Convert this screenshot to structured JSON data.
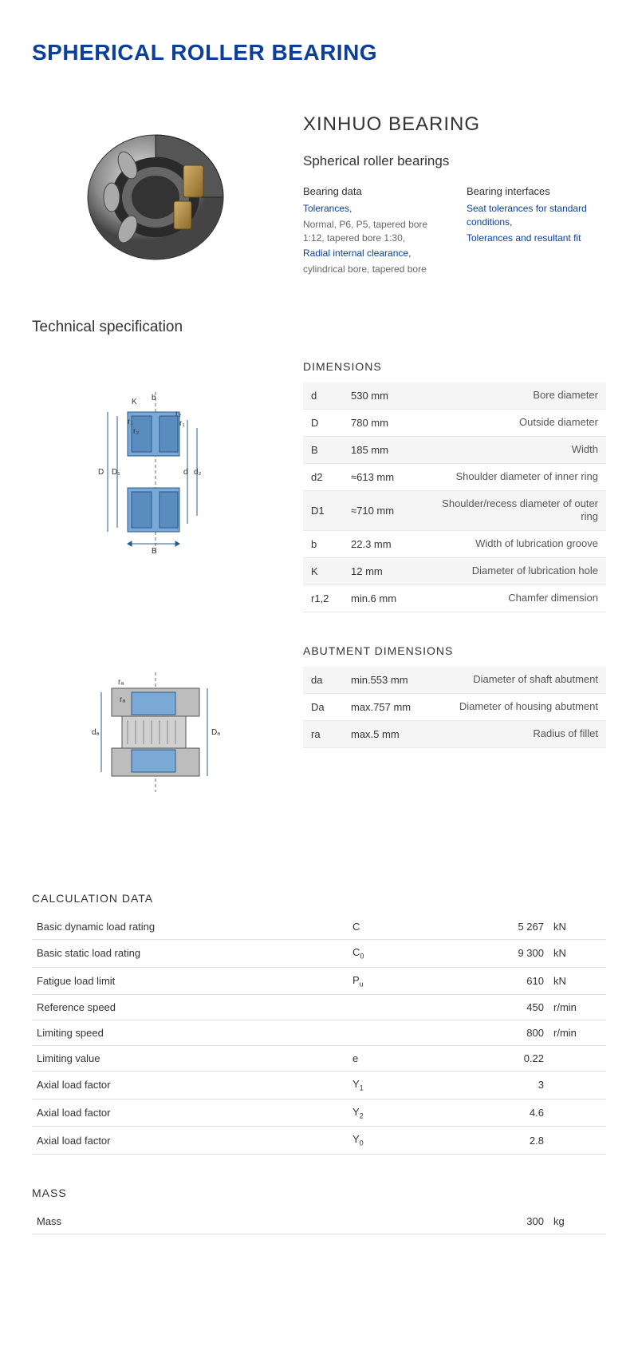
{
  "colors": {
    "brand_blue": "#0b3f9b",
    "text": "#333333",
    "muted": "#666666",
    "row_alt": "#f5f5f5",
    "border": "#e0e0e0",
    "diagram_blue": "#7ba9d6",
    "diagram_stroke": "#2b5a8c",
    "diagram_gray": "#9a9a9a"
  },
  "page_title": "SPHERICAL ROLLER BEARING",
  "brand": "XINHUO BEARING",
  "product_type": "Spherical roller bearings",
  "info_left": {
    "heading": "Bearing data",
    "link1": "Tolerances,",
    "text1": "Normal, P6, P5, tapered bore 1:12, tapered bore 1:30,",
    "link2": "Radial internal clearance,",
    "text2": "cylindrical bore, tapered bore"
  },
  "info_right": {
    "heading": "Bearing interfaces",
    "link1": "Seat tolerances for standard conditions,",
    "link2": "Tolerances and resultant fit"
  },
  "tech_spec_heading": "Technical specification",
  "dimensions": {
    "heading": "DIMENSIONS",
    "rows": [
      {
        "sym": "d",
        "val": "530  mm",
        "desc": "Bore diameter"
      },
      {
        "sym": "D",
        "val": "780  mm",
        "desc": "Outside diameter"
      },
      {
        "sym": "B",
        "val": "185  mm",
        "desc": "Width"
      },
      {
        "sym": "d2",
        "val": "≈613 mm",
        "desc": "Shoulder diameter of inner ring"
      },
      {
        "sym": "D1",
        "val": "≈710 mm",
        "desc": "Shoulder/recess diameter of outer ring"
      },
      {
        "sym": "b",
        "val": "22.3  mm",
        "desc": "Width of lubrication groove"
      },
      {
        "sym": "K",
        "val": "12  mm",
        "desc": "Diameter of lubrication hole"
      },
      {
        "sym": "r1,2",
        "val": "min.6 mm",
        "desc": "Chamfer dimension"
      }
    ]
  },
  "abutment": {
    "heading": "ABUTMENT DIMENSIONS",
    "rows": [
      {
        "sym": "da",
        "val": "min.553 mm",
        "desc": "Diameter of shaft abutment"
      },
      {
        "sym": "Da",
        "val": "max.757 mm",
        "desc": "Diameter of housing abutment"
      },
      {
        "sym": "ra",
        "val": "max.5 mm",
        "desc": "Radius of fillet"
      }
    ]
  },
  "calc": {
    "heading": "CALCULATION DATA",
    "rows": [
      {
        "label": "Basic dynamic load rating",
        "sym": "C",
        "sub": "",
        "val": "5 267",
        "unit": "kN"
      },
      {
        "label": "Basic static load rating",
        "sym": "C",
        "sub": "0",
        "val": "9 300",
        "unit": "kN"
      },
      {
        "label": "Fatigue load limit",
        "sym": "P",
        "sub": "u",
        "val": "610",
        "unit": "kN"
      },
      {
        "label": "Reference speed",
        "sym": "",
        "sub": "",
        "val": "450",
        "unit": "r/min"
      },
      {
        "label": "Limiting speed",
        "sym": "",
        "sub": "",
        "val": "800",
        "unit": "r/min"
      },
      {
        "label": "Limiting value",
        "sym": "e",
        "sub": "",
        "val": "0.22",
        "unit": ""
      },
      {
        "label": "Axial load factor",
        "sym": "Y",
        "sub": "1",
        "val": "3",
        "unit": ""
      },
      {
        "label": "Axial load factor",
        "sym": "Y",
        "sub": "2",
        "val": "4.6",
        "unit": ""
      },
      {
        "label": "Axial load factor",
        "sym": "Y",
        "sub": "0",
        "val": "2.8",
        "unit": ""
      }
    ]
  },
  "mass": {
    "heading": "MASS",
    "label": "Mass",
    "val": "300",
    "unit": "kg"
  }
}
